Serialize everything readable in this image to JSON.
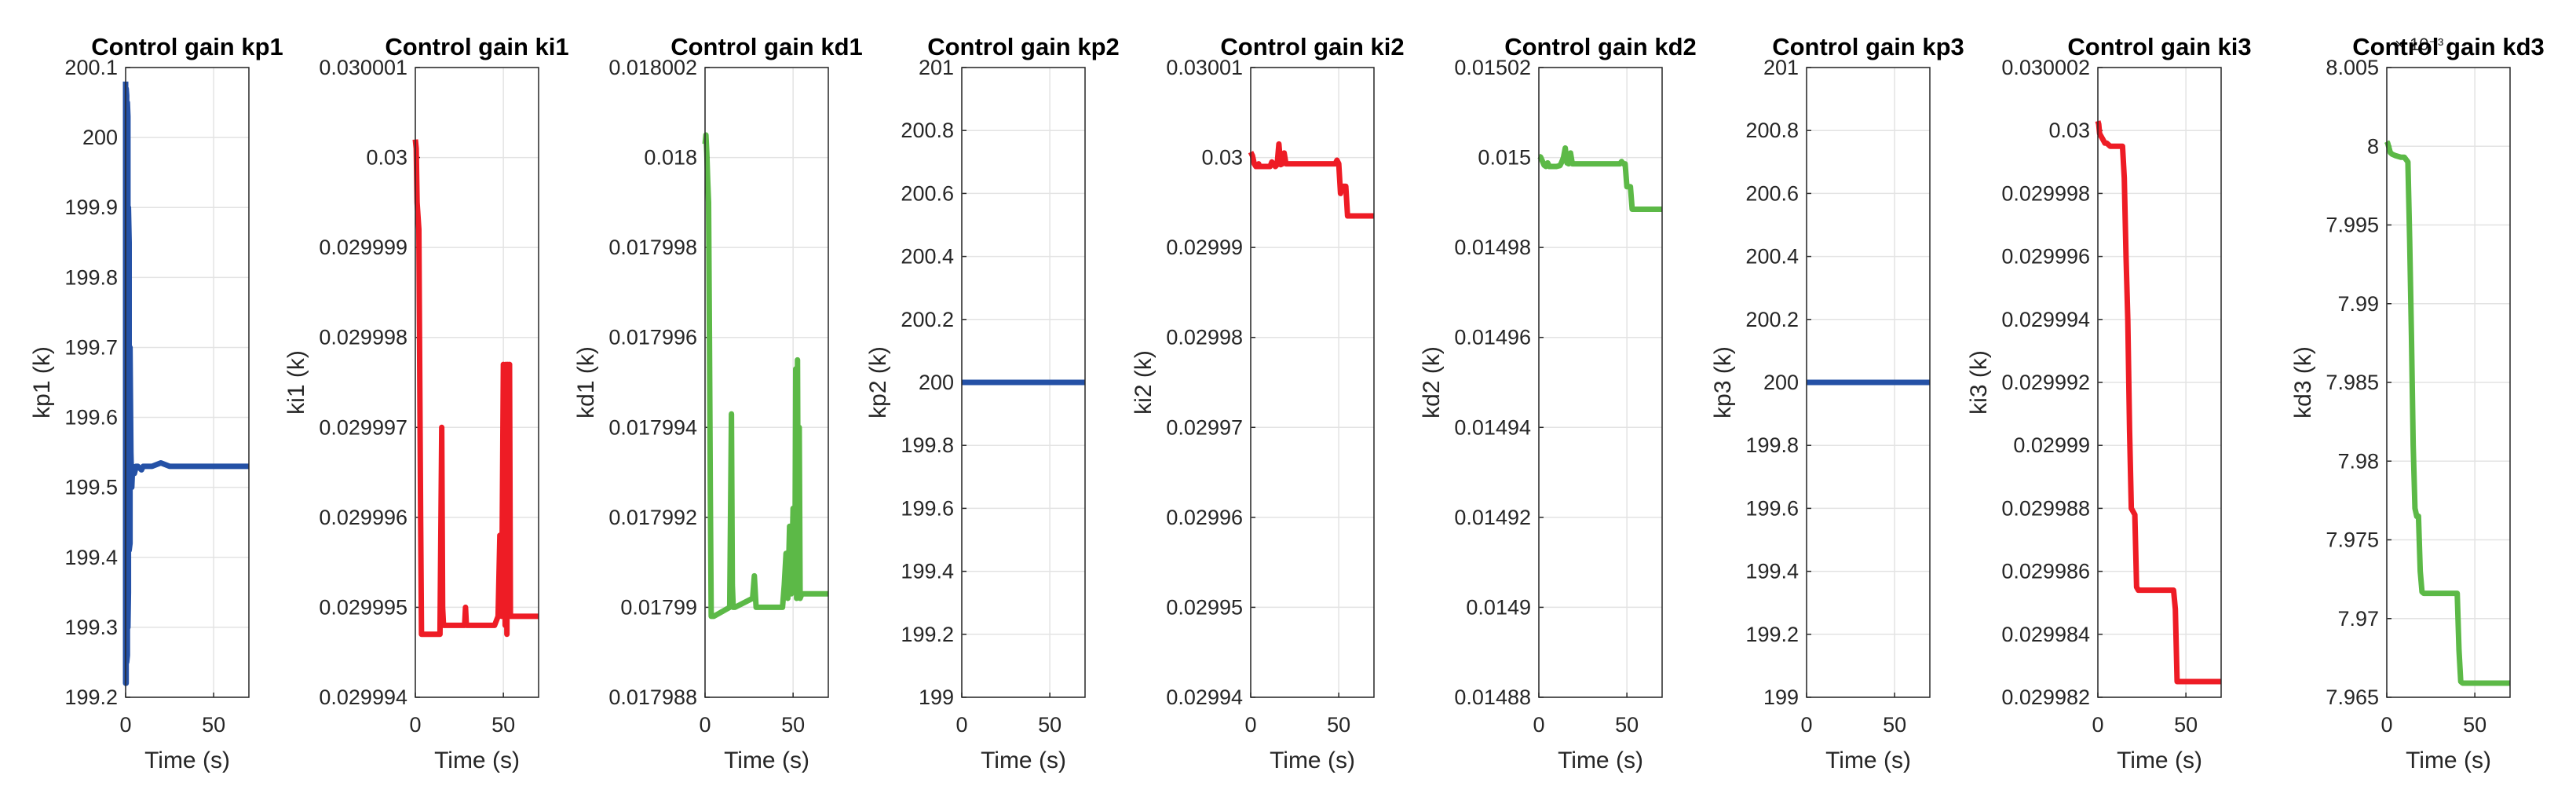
{
  "chart_data": [
    {
      "type": "line",
      "title": "Control gain kp1",
      "xlabel": "Time (s)",
      "ylabel": "kp1 (k)",
      "color": "#2451a6",
      "xlim": [
        0,
        70
      ],
      "ylim": [
        199.2,
        200.1
      ],
      "yticks": [
        "199.2",
        "199.3",
        "199.4",
        "199.5",
        "199.6",
        "199.7",
        "199.8",
        "199.9",
        "200",
        "200.1"
      ],
      "xticks": [
        "0",
        "50"
      ],
      "series": [
        {
          "name": "kp1",
          "x": [
            0,
            0,
            0.3,
            0.3,
            0.6,
            0.6,
            1,
            1,
            1.3,
            1.3,
            1.6,
            1.6,
            2,
            2,
            2.5,
            2.5,
            3,
            3.5,
            4,
            5,
            6,
            7,
            9,
            10,
            12,
            15,
            20,
            25,
            70
          ],
          "y": [
            200.08,
            199.22,
            199.22,
            200.07,
            200.06,
            199.25,
            199.26,
            200.05,
            200.03,
            199.3,
            199.35,
            199.9,
            199.85,
            199.41,
            199.42,
            199.7,
            199.55,
            199.5,
            199.53,
            199.52,
            199.53,
            199.53,
            199.525,
            199.53,
            199.53,
            199.53,
            199.535,
            199.53,
            199.53
          ]
        }
      ]
    },
    {
      "type": "line",
      "title": "Control gain ki1",
      "xlabel": "Time (s)",
      "ylabel": "ki1 (k)",
      "color": "#ee1c25",
      "xlim": [
        0,
        70
      ],
      "ylim": [
        0.029994,
        0.030001
      ],
      "yticks": [
        "0.029994",
        "0.029995",
        "0.029996",
        "0.029997",
        "0.029998",
        "0.029999",
        "0.03",
        "0.030001"
      ],
      "xticks": [
        "0",
        "50"
      ],
      "series": [
        {
          "name": "ki1",
          "x": [
            0,
            0.5,
            1,
            2,
            3,
            3.5,
            4,
            5,
            10,
            14,
            15,
            15.5,
            16,
            17,
            28,
            28.5,
            29,
            30,
            45,
            47,
            48,
            49,
            50,
            51,
            51.5,
            52,
            52.5,
            53,
            53.5,
            54,
            55,
            56,
            70
          ],
          "y": [
            0.0300002,
            0.0300001,
            0.0299995,
            0.0299992,
            0.029996,
            0.0299947,
            0.0299947,
            0.0299947,
            0.0299947,
            0.0299947,
            0.029997,
            0.029995,
            0.0299948,
            0.0299948,
            0.0299948,
            0.029995,
            0.0299948,
            0.0299948,
            0.0299948,
            0.0299949,
            0.0299958,
            0.0299949,
            0.0299977,
            0.0299948,
            0.0299977,
            0.0299947,
            0.0299977,
            0.0299949,
            0.0299977,
            0.0299949,
            0.0299949,
            0.0299949,
            0.0299949
          ]
        }
      ]
    },
    {
      "type": "line",
      "title": "Control gain kd1",
      "xlabel": "Time (s)",
      "ylabel": "kd1 (k)",
      "color": "#5cb947",
      "xlim": [
        0,
        70
      ],
      "ylim": [
        0.017988,
        0.018002
      ],
      "yticks": [
        "0.017988",
        "0.01799",
        "0.017992",
        "0.017994",
        "0.017996",
        "0.017998",
        "0.018",
        "0.018002"
      ],
      "xticks": [
        "0",
        "50"
      ],
      "series": [
        {
          "name": "kd1",
          "x": [
            0,
            0.5,
            1,
            1.5,
            2,
            2.5,
            3,
            3.5,
            4,
            5,
            14,
            15,
            15.5,
            16,
            17,
            27,
            28,
            29,
            30,
            44,
            45,
            46,
            47,
            48,
            49,
            50,
            51,
            51.5,
            52,
            52.5,
            53,
            53.5,
            54,
            55,
            70
          ],
          "y": [
            0.0180003,
            0.0180005,
            0.0180001,
            0.0179995,
            0.017999,
            0.017996,
            0.0179925,
            0.0179898,
            0.0179898,
            0.0179898,
            0.01799,
            0.0179943,
            0.0179905,
            0.01799,
            0.01799,
            0.0179902,
            0.0179907,
            0.01799,
            0.01799,
            0.01799,
            0.0179905,
            0.0179912,
            0.0179902,
            0.0179918,
            0.0179903,
            0.0179922,
            0.0179905,
            0.0179953,
            0.0179902,
            0.0179955,
            0.0179905,
            0.017994,
            0.0179902,
            0.0179903,
            0.0179903
          ]
        }
      ]
    },
    {
      "type": "line",
      "title": "Control gain kp2",
      "xlabel": "Time (s)",
      "ylabel": "kp2 (k)",
      "color": "#2451a6",
      "xlim": [
        0,
        70
      ],
      "ylim": [
        199,
        201
      ],
      "yticks": [
        "199",
        "199.2",
        "199.4",
        "199.6",
        "199.8",
        "200",
        "200.2",
        "200.4",
        "200.6",
        "200.8",
        "201"
      ],
      "xticks": [
        "0",
        "50"
      ],
      "series": [
        {
          "name": "kp2",
          "x": [
            0,
            70
          ],
          "y": [
            200,
            200
          ]
        }
      ]
    },
    {
      "type": "line",
      "title": "Control gain ki2",
      "xlabel": "Time (s)",
      "ylabel": "ki2 (k)",
      "color": "#ee1c25",
      "xlim": [
        0,
        70
      ],
      "ylim": [
        0.02994,
        0.03001
      ],
      "yticks": [
        "0.02994",
        "0.02995",
        "0.02996",
        "0.02997",
        "0.02998",
        "0.02999",
        "0.03",
        "0.03001"
      ],
      "xticks": [
        "0",
        "50"
      ],
      "series": [
        {
          "name": "ki2",
          "x": [
            0,
            0.5,
            1,
            2,
            3,
            4,
            4.5,
            5,
            6,
            7,
            10,
            11,
            12,
            13,
            14,
            15,
            16,
            17,
            18,
            19,
            20,
            21,
            22,
            45,
            46,
            47,
            48,
            49,
            50,
            51,
            52,
            53,
            54,
            55,
            56,
            57,
            70
          ],
          "y": [
            0.0300006,
            0.0300004,
            0.0300002,
            0.0299993,
            0.029999,
            0.029999,
            0.0299993,
            0.029999,
            0.029999,
            0.029999,
            0.029999,
            0.029999,
            0.0299995,
            0.0299993,
            0.029999,
            0.0299992,
            0.0300015,
            0.0299992,
            0.0299993,
            0.0300005,
            0.0299993,
            0.0299993,
            0.0299993,
            0.0299993,
            0.0299993,
            0.0299993,
            0.0299993,
            0.0299997,
            0.0299993,
            0.029996,
            0.0299968,
            0.0299968,
            0.0299968,
            0.0299935,
            0.0299935,
            0.0299935,
            0.0299935
          ]
        }
      ]
    },
    {
      "type": "line",
      "title": "Control gain kd2",
      "xlabel": "Time (s)",
      "ylabel": "kd2 (k)",
      "color": "#5cb947",
      "xlim": [
        0,
        70
      ],
      "ylim": [
        0.01488,
        0.01502
      ],
      "yticks": [
        "0.01488",
        "0.0149",
        "0.01492",
        "0.01494",
        "0.01496",
        "0.01498",
        "0.015",
        "0.01502"
      ],
      "xticks": [
        "0",
        "50"
      ],
      "series": [
        {
          "name": "kd2",
          "x": [
            0,
            0.5,
            1,
            2,
            3,
            4,
            5,
            6,
            8,
            10,
            12,
            13,
            14,
            15,
            16,
            17,
            18,
            19,
            20,
            45,
            46,
            47,
            48,
            49,
            50,
            51,
            52,
            53,
            54,
            55,
            56,
            57,
            70
          ],
          "y": [
            0.0150003,
            0.0150002,
            0.0150001,
            0.0149992,
            0.0149983,
            0.014998,
            0.0149988,
            0.014998,
            0.014998,
            0.014998,
            0.0149982,
            0.014999,
            0.015,
            0.0150021,
            0.0149988,
            0.0149986,
            0.015001,
            0.0149986,
            0.0149986,
            0.0149986,
            0.0149986,
            0.0149991,
            0.0149986,
            0.0149986,
            0.0149935,
            0.0149935,
            0.0149935,
            0.0149885,
            0.0149885,
            0.0149885,
            0.0149885,
            0.0149885,
            0.0149885
          ]
        }
      ]
    },
    {
      "type": "line",
      "title": "Control gain kp3",
      "xlabel": "Time (s)",
      "ylabel": "kp3 (k)",
      "color": "#2451a6",
      "xlim": [
        0,
        70
      ],
      "ylim": [
        199,
        201
      ],
      "yticks": [
        "199",
        "199.2",
        "199.4",
        "199.6",
        "199.8",
        "200",
        "200.2",
        "200.4",
        "200.6",
        "200.8",
        "201"
      ],
      "xticks": [
        "0",
        "50"
      ],
      "series": [
        {
          "name": "kp3",
          "x": [
            0,
            70
          ],
          "y": [
            200,
            200
          ]
        }
      ]
    },
    {
      "type": "line",
      "title": "Control gain ki3",
      "xlabel": "Time (s)",
      "ylabel": "ki3 (k)",
      "color": "#ee1c25",
      "xlim": [
        0,
        70
      ],
      "ylim": [
        0.029982,
        0.030002
      ],
      "yticks": [
        "0.029982",
        "0.029984",
        "0.029986",
        "0.029988",
        "0.02999",
        "0.029992",
        "0.029994",
        "0.029996",
        "0.029998",
        "0.03",
        "0.030002"
      ],
      "xticks": [
        "0",
        "50"
      ],
      "series": [
        {
          "name": "ki3",
          "x": [
            0,
            0.5,
            1,
            2,
            3,
            4,
            5,
            7,
            10,
            14,
            15,
            16,
            17,
            18,
            19,
            20,
            21,
            22,
            23,
            24,
            30,
            35,
            40,
            43,
            44,
            45,
            46,
            47,
            50,
            55,
            70
          ],
          "y": [
            0.0300003,
            0.0300002,
            0.0299999,
            0.0299998,
            0.0299997,
            0.0299996,
            0.0299996,
            0.0299995,
            0.0299995,
            0.0299995,
            0.0299985,
            0.029996,
            0.029994,
            0.0299905,
            0.029988,
            0.0299879,
            0.0299878,
            0.0299855,
            0.0299854,
            0.0299854,
            0.0299854,
            0.0299854,
            0.0299854,
            0.0299854,
            0.0299848,
            0.0299825,
            0.0299825,
            0.0299825,
            0.0299825,
            0.0299825,
            0.0299825
          ]
        }
      ]
    },
    {
      "type": "line",
      "title": "Control gain kd3",
      "xlabel": "Time (s)",
      "ylabel": "kd3 (k)",
      "exponent_label": "× 10⁻³",
      "color": "#5cb947",
      "xlim": [
        0,
        70
      ],
      "ylim": [
        7.965,
        8.005
      ],
      "yticks": [
        "7.965",
        "7.97",
        "7.975",
        "7.98",
        "7.985",
        "7.99",
        "7.995",
        "8",
        "8.005"
      ],
      "xticks": [
        "0",
        "50"
      ],
      "series": [
        {
          "name": "kd3",
          "x": [
            0,
            0.5,
            1,
            2,
            3,
            5,
            8,
            10,
            12,
            13,
            14,
            15,
            16,
            17,
            18,
            19,
            20,
            21,
            22,
            23,
            25,
            30,
            35,
            40,
            41,
            42,
            43,
            44,
            50,
            55,
            70
          ],
          "y": [
            8.0003,
            8.0002,
            8.0,
            7.9996,
            7.9995,
            7.9994,
            7.9993,
            7.9993,
            7.999,
            7.994,
            7.988,
            7.981,
            7.977,
            7.9765,
            7.9765,
            7.973,
            7.9717,
            7.9716,
            7.9716,
            7.9716,
            7.9716,
            7.9716,
            7.9716,
            7.9716,
            7.968,
            7.966,
            7.9659,
            7.9659,
            7.9659,
            7.9659,
            7.9659
          ]
        }
      ]
    }
  ]
}
